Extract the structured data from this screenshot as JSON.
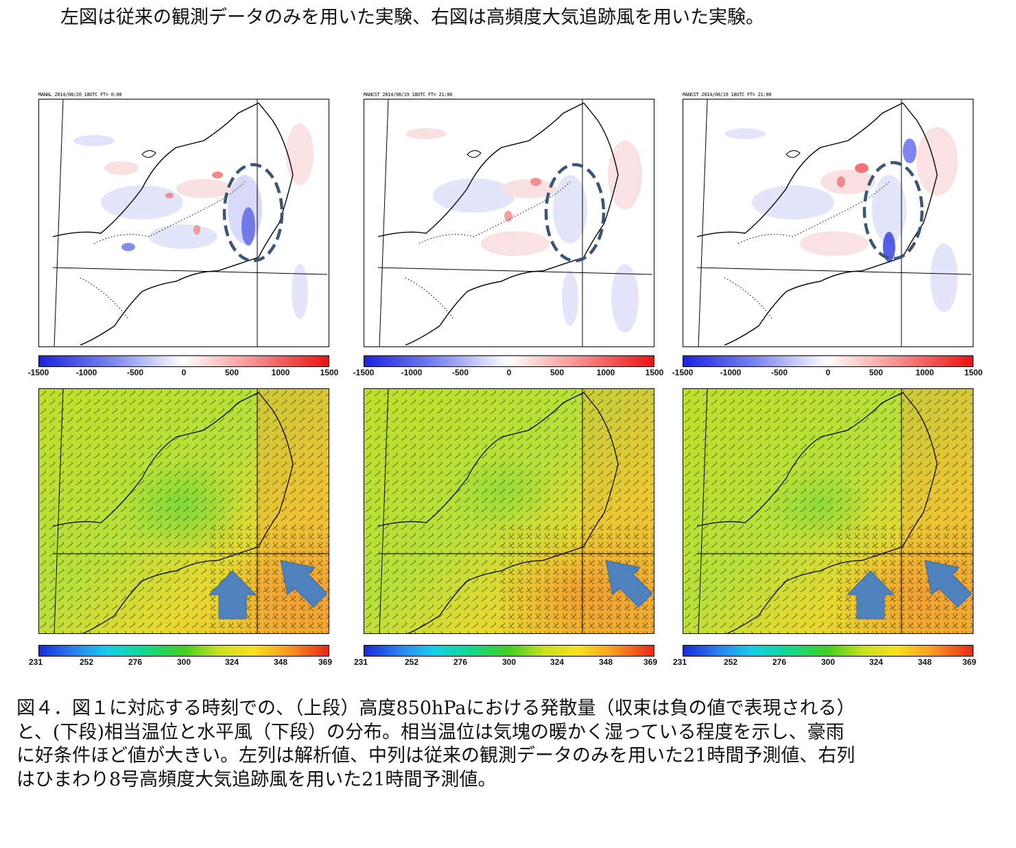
{
  "top_text": "左図は従来の観測データのみを用いた実験、右図は高頻度大気追跡風を用いた実験。",
  "figure": {
    "top_colorbar_ticks": [
      "-1500",
      "-1000",
      "-500",
      "0",
      "500",
      "1000",
      "1500"
    ],
    "bottom_colorbar_ticks": [
      "231",
      "252",
      "276",
      "300",
      "324",
      "348",
      "369"
    ],
    "colors": {
      "divergence_negative": "#1f2ee6",
      "divergence_positive": "#ff1a1a",
      "ellipse": "#3a5575",
      "arrow": "#4f81bd",
      "ept_field": "#c8e030"
    },
    "panels": [
      {
        "column": "analysis",
        "header": "MANAL 2014/08/20 18UTC FT= 0:00",
        "has_up_arrow": true,
        "has_diag_arrow": true
      },
      {
        "column": "forecast-conventional",
        "header": "MANCST 2014/08/19 18UTC FT= 21:00",
        "has_up_arrow": false,
        "has_diag_arrow": true
      },
      {
        "column": "forecast-himawari8",
        "header": "MANCST 2014/08/19 18UTC FT= 21:00",
        "has_up_arrow": true,
        "has_diag_arrow": true
      }
    ]
  },
  "caption": {
    "line1": "図４．図１に対応する時刻での、（上段）高度850hPaにおける発散量（収束は負の値で表現される）",
    "line2": "と、(下段)相当温位と水平風（下段）の分布。相当温位は気塊の暖かく湿っている程度を示し、豪雨",
    "line3": "に好条件ほど値が大きい。左列は解析値、中列は従来の観測データのみを用いた21時間予測値、右列",
    "line4": "はひまわり8号高頻度大気追跡風を用いた21時間予測値。"
  }
}
